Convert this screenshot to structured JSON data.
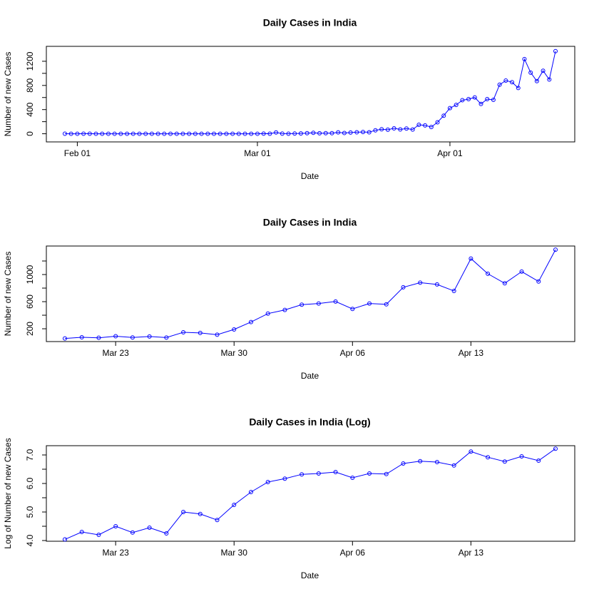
{
  "chart_data": [
    {
      "type": "line",
      "title": "Daily Cases in India",
      "xlabel": "Date",
      "ylabel": "Number of new Cases",
      "color": "#0000ff",
      "x": [
        "Jan 30",
        "Jan 31",
        "Feb 01",
        "Feb 02",
        "Feb 03",
        "Feb 04",
        "Feb 05",
        "Feb 06",
        "Feb 07",
        "Feb 08",
        "Feb 09",
        "Feb 10",
        "Feb 11",
        "Feb 12",
        "Feb 13",
        "Feb 14",
        "Feb 15",
        "Feb 16",
        "Feb 17",
        "Feb 18",
        "Feb 19",
        "Feb 20",
        "Feb 21",
        "Feb 22",
        "Feb 23",
        "Feb 24",
        "Feb 25",
        "Feb 26",
        "Feb 27",
        "Feb 28",
        "Feb 29",
        "Mar 01",
        "Mar 02",
        "Mar 03",
        "Mar 04",
        "Mar 05",
        "Mar 06",
        "Mar 07",
        "Mar 08",
        "Mar 09",
        "Mar 10",
        "Mar 11",
        "Mar 12",
        "Mar 13",
        "Mar 14",
        "Mar 15",
        "Mar 16",
        "Mar 17",
        "Mar 18",
        "Mar 19",
        "Mar 20",
        "Mar 21",
        "Mar 22",
        "Mar 23",
        "Mar 24",
        "Mar 25",
        "Mar 26",
        "Mar 27",
        "Mar 28",
        "Mar 29",
        "Mar 30",
        "Mar 31",
        "Apr 01",
        "Apr 02",
        "Apr 03",
        "Apr 04",
        "Apr 05",
        "Apr 06",
        "Apr 07",
        "Apr 08",
        "Apr 09",
        "Apr 10",
        "Apr 11",
        "Apr 12",
        "Apr 13",
        "Apr 14",
        "Apr 15",
        "Apr 16",
        "Apr 17",
        "Apr 18"
      ],
      "values": [
        1,
        0,
        0,
        1,
        1,
        0,
        0,
        0,
        0,
        0,
        0,
        0,
        0,
        0,
        0,
        0,
        0,
        0,
        0,
        0,
        0,
        0,
        0,
        0,
        0,
        0,
        0,
        0,
        0,
        0,
        0,
        0,
        2,
        1,
        22,
        2,
        1,
        3,
        5,
        9,
        15,
        8,
        10,
        10,
        23,
        12,
        20,
        25,
        29,
        25,
        57,
        74,
        67,
        90,
        72,
        86,
        70,
        148,
        138,
        112,
        190,
        299,
        424,
        478,
        555,
        573,
        602,
        493,
        573,
        561,
        812,
        880,
        854,
        758,
        1236,
        1012,
        871,
        1043,
        898,
        1367
      ],
      "xticks": [
        "Feb 01",
        "Mar 01",
        "Apr 01"
      ],
      "ylim": [
        -135,
        1447
      ],
      "yticks": [
        0,
        400,
        800,
        1200
      ],
      "yminor": [
        200,
        600,
        1000
      ]
    },
    {
      "type": "line",
      "title": "Daily Cases in India",
      "xlabel": "Date",
      "ylabel": "Number of new Cases",
      "color": "#0000ff",
      "x": [
        "Mar 20",
        "Mar 21",
        "Mar 22",
        "Mar 23",
        "Mar 24",
        "Mar 25",
        "Mar 26",
        "Mar 27",
        "Mar 28",
        "Mar 29",
        "Mar 30",
        "Mar 31",
        "Apr 01",
        "Apr 02",
        "Apr 03",
        "Apr 04",
        "Apr 05",
        "Apr 06",
        "Apr 07",
        "Apr 08",
        "Apr 09",
        "Apr 10",
        "Apr 11",
        "Apr 12",
        "Apr 13",
        "Apr 14",
        "Apr 15",
        "Apr 16",
        "Apr 17",
        "Apr 18"
      ],
      "values": [
        57,
        74,
        67,
        90,
        72,
        86,
        70,
        148,
        138,
        112,
        190,
        299,
        424,
        478,
        555,
        573,
        602,
        493,
        573,
        561,
        812,
        880,
        854,
        758,
        1236,
        1012,
        871,
        1043,
        898,
        1367
      ],
      "xticks": [
        "Mar 23",
        "Mar 30",
        "Apr 06",
        "Apr 13"
      ],
      "ylim": [
        11,
        1421
      ],
      "yticks": [
        200,
        600,
        1000
      ],
      "yminor": [
        400,
        800,
        1200
      ]
    },
    {
      "type": "line",
      "title": "Daily Cases in India (Log)",
      "xlabel": "Date",
      "ylabel": "Log of Number of new Cases",
      "color": "#0000ff",
      "x": [
        "Mar 20",
        "Mar 21",
        "Mar 22",
        "Mar 23",
        "Mar 24",
        "Mar 25",
        "Mar 26",
        "Mar 27",
        "Mar 28",
        "Mar 29",
        "Mar 30",
        "Mar 31",
        "Apr 01",
        "Apr 02",
        "Apr 03",
        "Apr 04",
        "Apr 05",
        "Apr 06",
        "Apr 07",
        "Apr 08",
        "Apr 09",
        "Apr 10",
        "Apr 11",
        "Apr 12",
        "Apr 13",
        "Apr 14",
        "Apr 15",
        "Apr 16",
        "Apr 17",
        "Apr 18"
      ],
      "values": [
        4.04,
        4.3,
        4.2,
        4.5,
        4.28,
        4.45,
        4.25,
        5.0,
        4.93,
        4.72,
        5.25,
        5.7,
        6.05,
        6.17,
        6.32,
        6.35,
        6.4,
        6.2,
        6.35,
        6.33,
        6.7,
        6.78,
        6.75,
        6.63,
        7.12,
        6.92,
        6.77,
        6.95,
        6.8,
        7.22
      ],
      "xticks": [
        "Mar 23",
        "Mar 30",
        "Apr 06",
        "Apr 13"
      ],
      "ylim": [
        3.975,
        7.325
      ],
      "yticks": [
        {
          "value": 4,
          "label": "4.0"
        },
        {
          "value": 5,
          "label": "5.0"
        },
        {
          "value": 6,
          "label": "6.0"
        },
        {
          "value": 7,
          "label": "7.0"
        }
      ],
      "yminor": [
        4.5,
        5.5,
        6.5
      ]
    }
  ]
}
